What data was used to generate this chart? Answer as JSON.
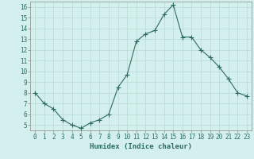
{
  "x": [
    0,
    1,
    2,
    3,
    4,
    5,
    6,
    7,
    8,
    9,
    10,
    11,
    12,
    13,
    14,
    15,
    16,
    17,
    18,
    19,
    20,
    21,
    22,
    23
  ],
  "y": [
    8.0,
    7.0,
    6.5,
    5.5,
    5.0,
    4.7,
    5.2,
    5.5,
    6.0,
    8.5,
    9.7,
    12.8,
    13.5,
    13.8,
    15.3,
    16.2,
    13.2,
    13.2,
    12.0,
    11.3,
    10.4,
    9.3,
    8.0,
    7.7
  ],
  "line_color": "#2d6b60",
  "marker": "+",
  "marker_size": 4,
  "bg_color": "#d4f0ee",
  "grid_color": "#b8d8d4",
  "xlabel": "Humidex (Indice chaleur)",
  "ylim": [
    4.5,
    16.5
  ],
  "xlim": [
    -0.5,
    23.5
  ],
  "yticks": [
    5,
    6,
    7,
    8,
    9,
    10,
    11,
    12,
    13,
    14,
    15,
    16
  ],
  "xticks": [
    0,
    1,
    2,
    3,
    4,
    5,
    6,
    7,
    8,
    9,
    10,
    11,
    12,
    13,
    14,
    15,
    16,
    17,
    18,
    19,
    20,
    21,
    22,
    23
  ],
  "tick_fontsize": 5.5,
  "xlabel_fontsize": 6.5,
  "xlabel_fontweight": "bold",
  "linewidth": 0.8,
  "marker_linewidth": 0.8
}
